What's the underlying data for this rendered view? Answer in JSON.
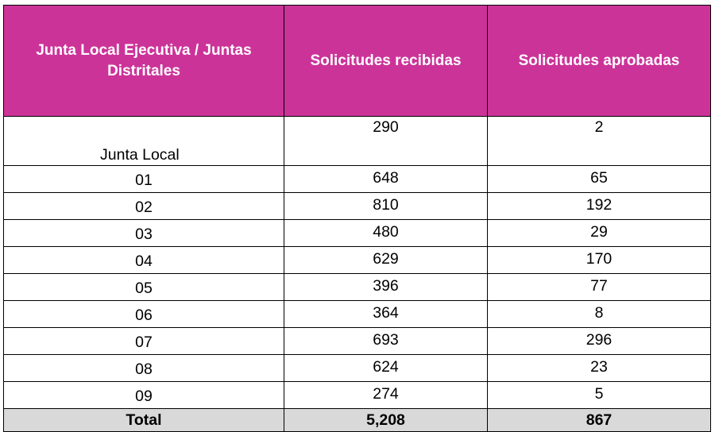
{
  "header": {
    "col1": "Junta Local Ejecutiva / Juntas Distritales",
    "col2": "Solicitudes recibidas",
    "col3": "Solicitudes aprobadas"
  },
  "rows": [
    {
      "label": "Junta Local",
      "recibidas": "290",
      "aprobadas": "2"
    },
    {
      "label": "01",
      "recibidas": "648",
      "aprobadas": "65"
    },
    {
      "label": "02",
      "recibidas": "810",
      "aprobadas": "192"
    },
    {
      "label": "03",
      "recibidas": "480",
      "aprobadas": "29"
    },
    {
      "label": "04",
      "recibidas": "629",
      "aprobadas": "170"
    },
    {
      "label": "05",
      "recibidas": "396",
      "aprobadas": "77"
    },
    {
      "label": "06",
      "recibidas": "364",
      "aprobadas": "8"
    },
    {
      "label": "07",
      "recibidas": "693",
      "aprobadas": "296"
    },
    {
      "label": "08",
      "recibidas": "624",
      "aprobadas": "23"
    },
    {
      "label": "09",
      "recibidas": "274",
      "aprobadas": "5"
    }
  ],
  "total": {
    "label": "Total",
    "recibidas": "5,208",
    "aprobadas": "867"
  },
  "colors": {
    "header_bg": "#cc3399",
    "header_text": "#ffffff",
    "total_bg": "#d9d9d9"
  }
}
